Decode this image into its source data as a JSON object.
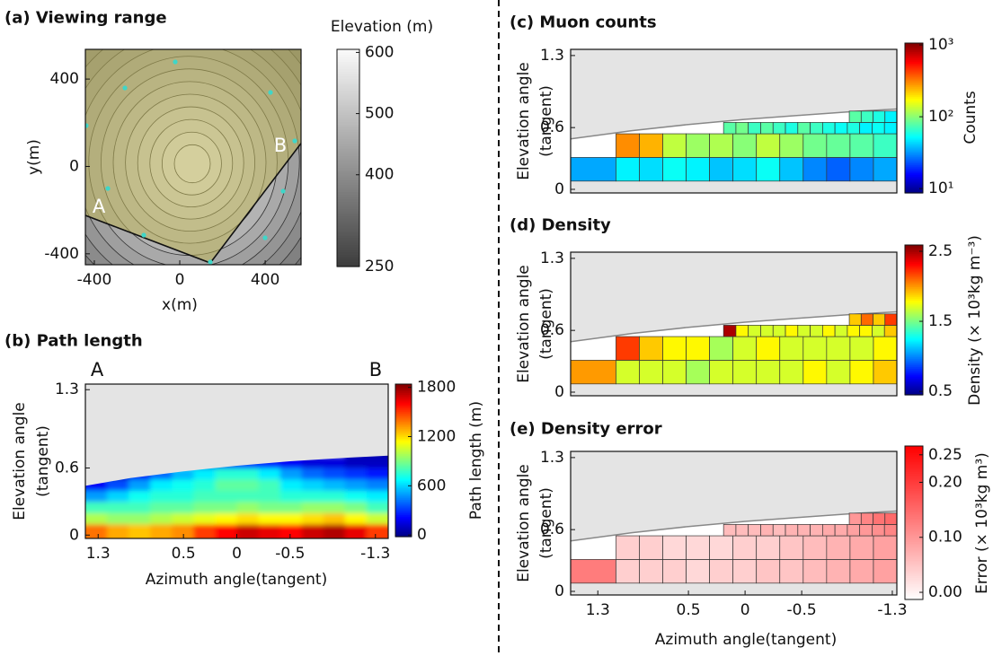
{
  "chart_data": [
    {
      "type": "contour",
      "title": "(a) Viewing range",
      "xlabel": "x(m)",
      "ylabel": "y(m)",
      "xlim": [
        -442,
        568
      ],
      "ylim": [
        -450,
        536
      ],
      "xticks": [
        -400,
        0,
        400
      ],
      "yticks": [
        -400,
        0,
        400
      ],
      "annotations": [
        "A",
        "B"
      ],
      "colorbar": {
        "label": "Elevation (m)",
        "colormap": "gray",
        "clim": [
          250,
          605
        ],
        "ticks": [
          600,
          500,
          400,
          250
        ]
      }
    },
    {
      "type": "heatmap",
      "title": "(b) Path length",
      "annotations": [
        "A",
        "B"
      ],
      "xlabel": "Azimuth angle(tangent)",
      "ylabel": [
        "Elevation angle",
        "(tangent)"
      ],
      "xlim": [
        1.42,
        -1.42
      ],
      "ylim": [
        -0.03,
        1.35
      ],
      "xticks": [
        1.3,
        0.5,
        0,
        -0.5,
        -1.3
      ],
      "yticks": [
        1.3,
        0.6,
        0
      ],
      "values": [
        [
          1400,
          1300,
          1250,
          1300,
          1350,
          1500,
          1600,
          1700,
          1650,
          1600,
          1700,
          1750,
          1650,
          1500
        ],
        [
          1000,
          950,
          950,
          1000,
          1050,
          1100,
          1150,
          1200,
          1150,
          1150,
          1200,
          1250,
          1150,
          1050
        ],
        [
          800,
          800,
          800,
          850,
          850,
          900,
          900,
          950,
          900,
          900,
          950,
          950,
          900,
          800
        ],
        [
          500,
          600,
          700,
          750,
          750,
          800,
          800,
          800,
          800,
          750,
          750,
          750,
          700,
          650
        ],
        [
          200,
          350,
          500,
          650,
          700,
          750,
          850,
          850,
          800,
          650,
          600,
          550,
          500,
          450
        ],
        [
          null,
          100,
          200,
          400,
          550,
          650,
          750,
          750,
          650,
          500,
          400,
          350,
          300,
          250
        ],
        [
          null,
          null,
          null,
          null,
          null,
          150,
          200,
          250,
          250,
          200,
          150,
          150,
          100,
          100
        ],
        [
          null,
          null,
          null,
          null,
          null,
          null,
          null,
          null,
          null,
          null,
          null,
          null,
          50,
          50
        ]
      ],
      "colorbar": {
        "label": "Path length (m)",
        "colormap": "jet",
        "clim": [
          -20,
          1840
        ],
        "ticks": [
          1800,
          1200,
          600,
          0
        ]
      }
    },
    {
      "type": "tiles",
      "title": "(c) Muon counts",
      "ylabel": [
        "Elevation angle",
        "(tangent)"
      ],
      "xlim": [
        1.54,
        -1.34
      ],
      "ylim": [
        -0.035,
        1.36
      ],
      "yticks": [
        1.3,
        0.6,
        0
      ],
      "values": [
        [
          35,
          50,
          45,
          55,
          50,
          40,
          45,
          55,
          40,
          30,
          25,
          30,
          35
        ],
        [
          300,
          250,
          130,
          110,
          120,
          100,
          130,
          110,
          90,
          85,
          80,
          70
        ],
        [
          80,
          90,
          70,
          80,
          70,
          60,
          80,
          70,
          60,
          55,
          60,
          50,
          55,
          50
        ],
        [
          80,
          70,
          60,
          50
        ]
      ],
      "colorbar": {
        "label": "Counts",
        "colormap": "jet",
        "log": true,
        "clim": [
          8.7,
          1060
        ],
        "ticks": [
          {
            "value": 1000,
            "label": "10³"
          },
          {
            "value": 100,
            "label": "10²"
          },
          {
            "value": 10,
            "label": "10¹"
          }
        ]
      }
    },
    {
      "type": "tiles",
      "title": "(d) Density",
      "ylabel": [
        "Elevation angle",
        "(tangent)"
      ],
      "xlim": [
        1.54,
        -1.34
      ],
      "ylim": [
        -0.035,
        1.36
      ],
      "yticks": [
        1.3,
        0.6,
        0
      ],
      "values": [
        [
          2.0,
          1.7,
          1.7,
          1.7,
          1.6,
          1.7,
          1.7,
          1.7,
          1.7,
          1.8,
          1.7,
          1.8,
          1.9
        ],
        [
          2.2,
          1.9,
          1.8,
          1.8,
          1.6,
          1.7,
          1.8,
          1.7,
          1.7,
          1.7,
          1.7,
          1.8
        ],
        [
          2.5,
          1.8,
          1.7,
          1.7,
          1.7,
          1.8,
          1.7,
          1.7,
          1.8,
          1.7,
          1.8,
          1.8,
          1.7,
          1.9
        ],
        [
          1.9,
          2.1,
          1.9,
          2.2
        ]
      ],
      "colorbar": {
        "label": "Density (× 10³kg m⁻³)",
        "colormap": "jet",
        "clim": [
          0.45,
          2.59
        ],
        "ticks": [
          2.5,
          1.5,
          0.5
        ]
      }
    },
    {
      "type": "tiles",
      "title": "(e) Density error",
      "xlabel": "Azimuth angle(tangent)",
      "ylabel": [
        "Elevation angle",
        "(tangent)"
      ],
      "xlim": [
        1.54,
        -1.34
      ],
      "ylim": [
        -0.035,
        1.36
      ],
      "xticks": [
        1.3,
        0.5,
        0,
        -0.5,
        -1.3
      ],
      "yticks": [
        1.3,
        0.6,
        0
      ],
      "values": [
        [
          0.13,
          0.04,
          0.04,
          0.04,
          0.03,
          0.04,
          0.04,
          0.05,
          0.05,
          0.06,
          0.07,
          0.08,
          0.09
        ],
        [
          0.04,
          0.04,
          0.03,
          0.03,
          0.03,
          0.04,
          0.04,
          0.05,
          0.06,
          0.07,
          0.08,
          0.09
        ],
        [
          0.06,
          0.06,
          0.06,
          0.07,
          0.06,
          0.07,
          0.07,
          0.07,
          0.08,
          0.08,
          0.09,
          0.1,
          0.11,
          0.12
        ],
        [
          0.1,
          0.12,
          0.14,
          0.15
        ]
      ],
      "colorbar": {
        "label": "Error (× 10³kg m³)",
        "colormap": "reds",
        "clim": [
          -0.013,
          0.266
        ],
        "ticks": [
          0.25,
          {
            "value": 0.2,
            "label": "0.20"
          },
          {
            "value": 0.1,
            "label": "0.10"
          },
          {
            "value": 0,
            "label": "0.00"
          }
        ]
      }
    }
  ]
}
